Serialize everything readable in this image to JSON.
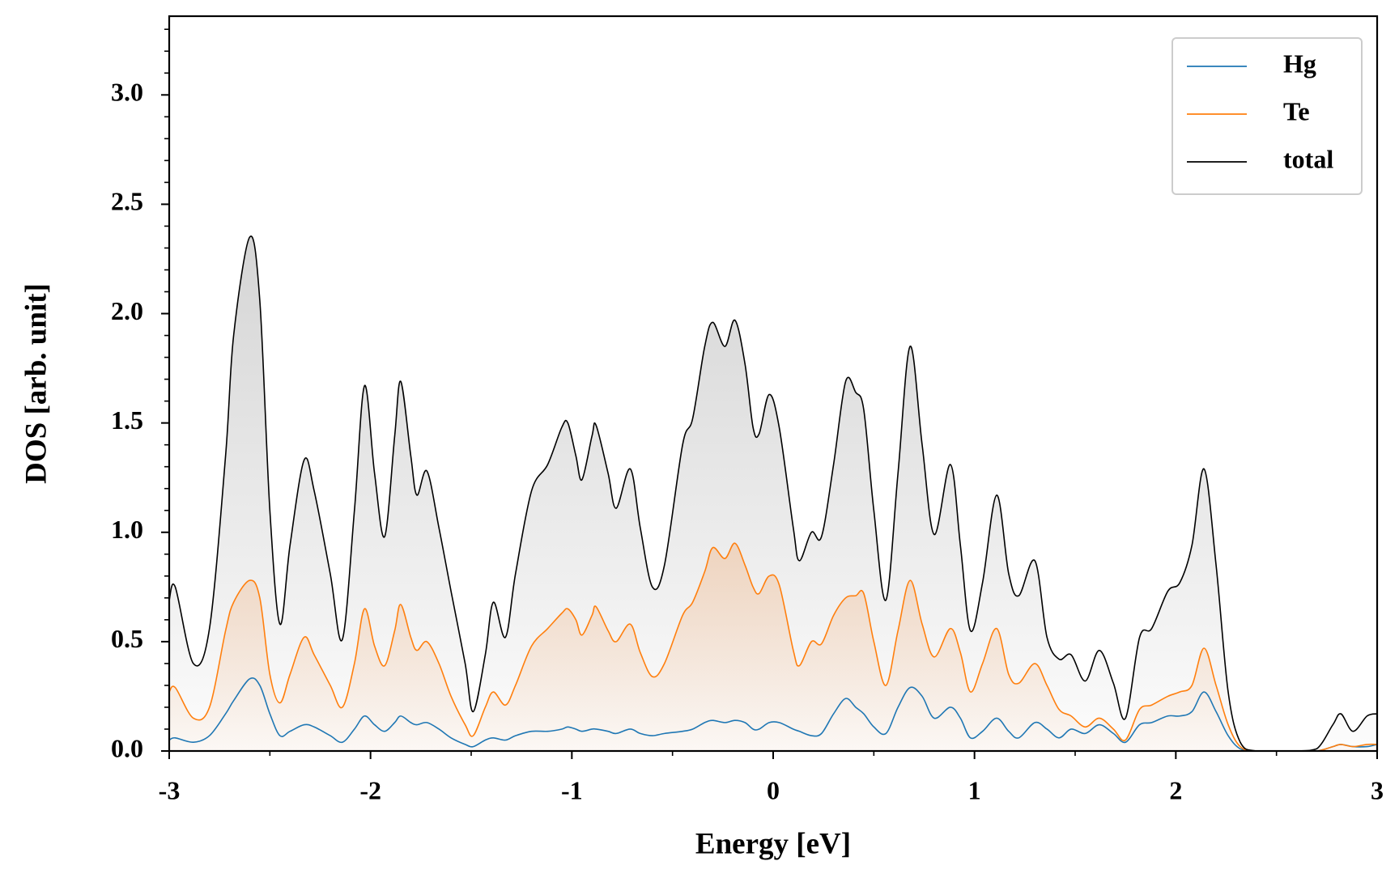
{
  "chart_data": {
    "type": "line",
    "xlabel": "Energy [eV]",
    "ylabel": "DOS [arb. unit]",
    "x": [
      -3,
      -2.97,
      -2.88,
      -2.8,
      -2.72,
      -2.68,
      -2.6,
      -2.55,
      -2.5,
      -2.45,
      -2.4,
      -2.33,
      -2.28,
      -2.2,
      -2.14,
      -2.08,
      -2.03,
      -1.98,
      -1.93,
      -1.88,
      -1.85,
      -1.8,
      -1.77,
      -1.72,
      -1.66,
      -1.6,
      -1.53,
      -1.49,
      -1.43,
      -1.39,
      -1.33,
      -1.28,
      -1.2,
      -1.12,
      -1.05,
      -1.02,
      -0.98,
      -0.95,
      -0.9,
      -0.88,
      -0.82,
      -0.78,
      -0.71,
      -0.66,
      -0.6,
      -0.54,
      -0.45,
      -0.4,
      -0.34,
      -0.3,
      -0.24,
      -0.19,
      -0.14,
      -0.1,
      -0.07,
      -0.02,
      0.03,
      0.1,
      0.13,
      0.19,
      0.24,
      0.3,
      0.36,
      0.41,
      0.45,
      0.5,
      0.56,
      0.62,
      0.68,
      0.74,
      0.8,
      0.88,
      0.93,
      0.98,
      1.04,
      1.11,
      1.17,
      1.22,
      1.3,
      1.36,
      1.42,
      1.48,
      1.55,
      1.62,
      1.69,
      1.75,
      1.82,
      1.88,
      1.96,
      2.02,
      2.08,
      2.14,
      2.2,
      2.26,
      2.32,
      2.4,
      2.6,
      2.7,
      2.78,
      2.82,
      2.88,
      2.95,
      3
    ],
    "series": [
      {
        "name": "Hg",
        "color": "#1f77b4",
        "values": [
          0.05,
          0.06,
          0.04,
          0.07,
          0.17,
          0.23,
          0.33,
          0.3,
          0.17,
          0.07,
          0.09,
          0.12,
          0.11,
          0.07,
          0.04,
          0.1,
          0.16,
          0.12,
          0.09,
          0.13,
          0.16,
          0.13,
          0.12,
          0.13,
          0.1,
          0.06,
          0.03,
          0.02,
          0.05,
          0.06,
          0.05,
          0.07,
          0.09,
          0.09,
          0.1,
          0.11,
          0.1,
          0.09,
          0.1,
          0.1,
          0.09,
          0.08,
          0.1,
          0.08,
          0.07,
          0.08,
          0.09,
          0.1,
          0.13,
          0.14,
          0.13,
          0.14,
          0.13,
          0.1,
          0.1,
          0.13,
          0.13,
          0.1,
          0.09,
          0.07,
          0.08,
          0.17,
          0.24,
          0.2,
          0.17,
          0.11,
          0.08,
          0.2,
          0.29,
          0.25,
          0.15,
          0.2,
          0.15,
          0.06,
          0.09,
          0.15,
          0.09,
          0.06,
          0.13,
          0.1,
          0.06,
          0.1,
          0.08,
          0.12,
          0.08,
          0.04,
          0.12,
          0.13,
          0.16,
          0.16,
          0.18,
          0.27,
          0.18,
          0.07,
          0.01,
          0,
          0,
          0,
          0.02,
          0.03,
          0.02,
          0.02,
          0.03
        ]
      },
      {
        "name": "Te",
        "color": "#ff7f0e",
        "fill": "#f2a466",
        "values": [
          0.27,
          0.29,
          0.15,
          0.2,
          0.55,
          0.68,
          0.78,
          0.7,
          0.35,
          0.22,
          0.35,
          0.52,
          0.44,
          0.3,
          0.2,
          0.4,
          0.65,
          0.48,
          0.39,
          0.55,
          0.67,
          0.52,
          0.46,
          0.5,
          0.4,
          0.25,
          0.12,
          0.07,
          0.2,
          0.27,
          0.21,
          0.3,
          0.48,
          0.56,
          0.63,
          0.65,
          0.6,
          0.53,
          0.62,
          0.66,
          0.55,
          0.5,
          0.58,
          0.45,
          0.34,
          0.4,
          0.62,
          0.68,
          0.82,
          0.93,
          0.88,
          0.95,
          0.85,
          0.75,
          0.72,
          0.8,
          0.76,
          0.46,
          0.39,
          0.5,
          0.49,
          0.62,
          0.7,
          0.71,
          0.72,
          0.5,
          0.3,
          0.55,
          0.78,
          0.58,
          0.43,
          0.56,
          0.45,
          0.27,
          0.4,
          0.56,
          0.35,
          0.31,
          0.4,
          0.3,
          0.19,
          0.16,
          0.11,
          0.15,
          0.1,
          0.05,
          0.19,
          0.21,
          0.25,
          0.27,
          0.3,
          0.47,
          0.3,
          0.12,
          0.02,
          0,
          0,
          0,
          0.02,
          0.03,
          0.02,
          0.03,
          0.03
        ]
      },
      {
        "name": "total",
        "color": "#000000",
        "fill": "#c8c8c8",
        "values": [
          0.69,
          0.75,
          0.4,
          0.56,
          1.35,
          1.9,
          2.35,
          2.06,
          1.1,
          0.58,
          0.94,
          1.33,
          1.19,
          0.81,
          0.51,
          1.1,
          1.67,
          1.27,
          0.98,
          1.44,
          1.69,
          1.35,
          1.17,
          1.28,
          1.02,
          0.73,
          0.4,
          0.18,
          0.44,
          0.68,
          0.52,
          0.81,
          1.19,
          1.31,
          1.48,
          1.5,
          1.35,
          1.24,
          1.44,
          1.49,
          1.27,
          1.11,
          1.29,
          1.02,
          0.75,
          0.85,
          1.4,
          1.52,
          1.85,
          1.96,
          1.85,
          1.97,
          1.77,
          1.48,
          1.45,
          1.63,
          1.48,
          1.02,
          0.87,
          1.0,
          0.98,
          1.31,
          1.69,
          1.64,
          1.56,
          1.1,
          0.69,
          1.27,
          1.85,
          1.4,
          0.99,
          1.31,
          0.94,
          0.55,
          0.77,
          1.17,
          0.81,
          0.71,
          0.87,
          0.52,
          0.42,
          0.44,
          0.32,
          0.46,
          0.31,
          0.15,
          0.52,
          0.56,
          0.73,
          0.77,
          0.94,
          1.29,
          0.85,
          0.27,
          0.04,
          0,
          0,
          0.01,
          0.12,
          0.17,
          0.09,
          0.16,
          0.17
        ]
      }
    ],
    "xlim": [
      -3,
      3
    ],
    "xticks": [
      -3,
      -2,
      -1,
      0,
      1,
      2,
      3
    ],
    "xminor": [
      -2.5,
      -1.5,
      -0.5,
      0.5,
      1.5,
      2.5
    ],
    "ylim": [
      0,
      3.36
    ],
    "yticks": [
      {
        "value": 0,
        "label": "0.0"
      },
      0.5,
      {
        "value": 1,
        "label": "1.0"
      },
      1.5,
      {
        "value": 2,
        "label": "2.0"
      },
      2.5,
      {
        "value": 3,
        "label": "3.0"
      }
    ],
    "yminor": [
      0.1,
      0.2,
      0.3,
      0.4,
      0.6,
      0.7,
      0.8,
      0.9,
      1.1,
      1.2,
      1.3,
      1.4,
      1.6,
      1.7,
      1.8,
      1.9,
      2.1,
      2.2,
      2.3,
      2.4,
      2.6,
      2.7,
      2.8,
      2.9,
      3.1,
      3.2,
      3.3
    ],
    "grid": false,
    "legend": "upper right"
  }
}
